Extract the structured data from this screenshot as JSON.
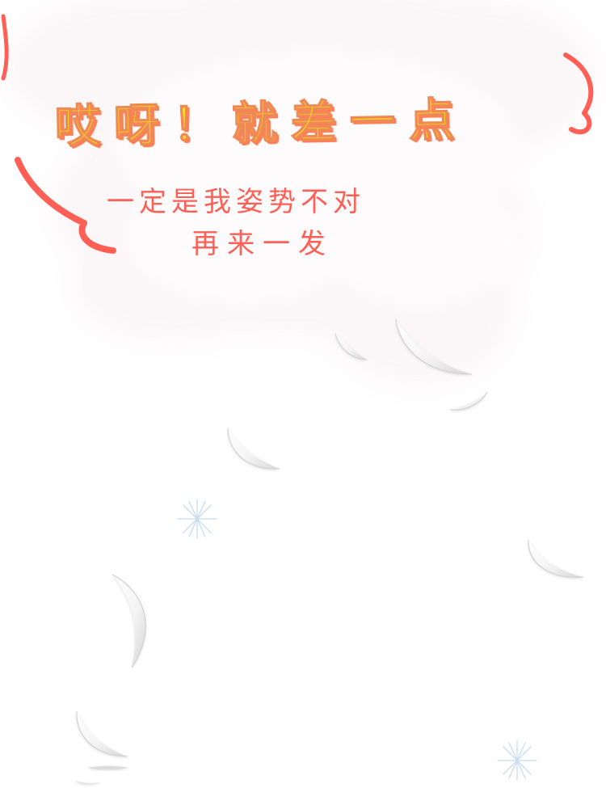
{
  "bubble": {
    "headline": "哎呀！就差一点",
    "subline_1": "一定是我姿势不对",
    "subline_2": "再来一发"
  },
  "colors": {
    "headline_fill": "#ffde1f",
    "headline_outline": "#ff7a59",
    "subline_text": "#ff5f54",
    "bubble_stroke": "#ff5f54",
    "cloud_fill": "#fbf7f8",
    "feather_fill": "#f1f1f1",
    "sparkle": "#c9dcec"
  },
  "decorations": {
    "feather_icon": "feather-icon",
    "sparkle_icon": "snowflake-sparkle-icon",
    "feather_count": 9,
    "sparkle_count": 2
  }
}
